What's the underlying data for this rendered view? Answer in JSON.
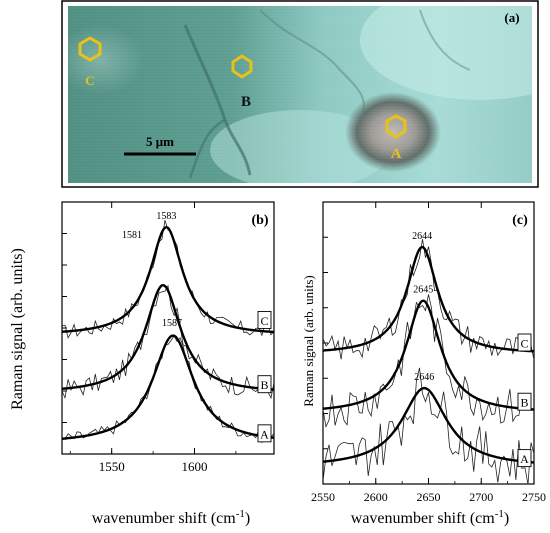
{
  "micrograph": {
    "panel_label": "(a)",
    "scale_bar_label": "5 μm",
    "markers": [
      {
        "label": "C",
        "color": "#e8c21a"
      },
      {
        "label": "B",
        "color": "#e8c21a"
      },
      {
        "label": "A",
        "color": "#e8c21a"
      }
    ]
  },
  "chart_data": [
    {
      "type": "line",
      "panel_label": "(b)",
      "xlabel": "wavenumber shift (cm",
      "xlabel_sup": "-1",
      "xlabel_end": ")",
      "ylabel": "Raman signal (arb. units)",
      "xlim": [
        1520,
        1648
      ],
      "ylim": [
        0,
        1
      ],
      "xticks": [
        1550,
        1600
      ],
      "grid": false,
      "series": [
        {
          "name": "C",
          "peak": 1583,
          "peak_label": "1583",
          "offset": 0.47,
          "amplitude": 0.43,
          "width": 12,
          "noise": 0.03,
          "label_y": 0.53
        },
        {
          "name": "B",
          "peak": 1581,
          "peak_label": "1581",
          "offset": 0.24,
          "amplitude": 0.43,
          "width": 13,
          "noise": 0.04,
          "label_y": 0.275
        },
        {
          "name": "A",
          "peak": 1587,
          "peak_label": "1587",
          "offset": 0.04,
          "amplitude": 0.43,
          "width": 15,
          "noise": 0.025,
          "label_y": 0.08
        }
      ]
    },
    {
      "type": "line",
      "panel_label": "(c)",
      "xlabel": "wavenumber shift (cm",
      "xlabel_sup": "-1",
      "xlabel_end": ")",
      "ylabel": "Raman signal (arb. units)",
      "xlim": [
        2550,
        2750
      ],
      "ylim": [
        0,
        1
      ],
      "xticks": [
        2550,
        2600,
        2650,
        2700,
        2750
      ],
      "grid": false,
      "series": [
        {
          "name": "C",
          "peak": 2644,
          "peak_label": "2644",
          "offset": 0.46,
          "amplitude": 0.38,
          "width": 18,
          "noise": 0.05,
          "label_y": 0.5
        },
        {
          "name": "B",
          "peak": 2645,
          "peak_label": "2645",
          "offset": 0.25,
          "amplitude": 0.4,
          "width": 20,
          "noise": 0.07,
          "label_y": 0.29
        },
        {
          "name": "A",
          "peak": 2646,
          "peak_label": "2646",
          "offset": 0.06,
          "amplitude": 0.28,
          "width": 26,
          "noise": 0.09,
          "label_y": 0.09
        }
      ]
    }
  ]
}
